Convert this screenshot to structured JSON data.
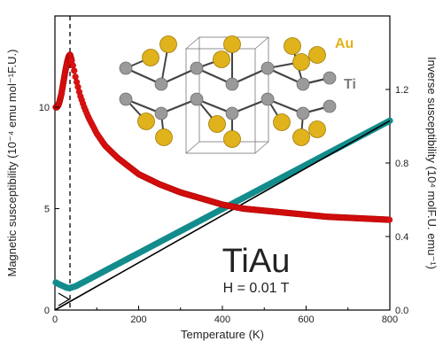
{
  "chart_data": {
    "type": "scatter",
    "xlabel": "Temperature (K)",
    "ylabel_left": "Magnetic susceptibility (10⁻⁴ emu mol⁻¹F.U.)",
    "ylabel_right": "Inverse susceptibility (10⁴ molF.U. emu⁻¹)",
    "xlim": [
      0,
      800
    ],
    "ylim_left": [
      0,
      14.5
    ],
    "ylim_right": [
      0,
      1.6
    ],
    "x_ticks": [
      "0",
      "200",
      "400",
      "600",
      "800"
    ],
    "y_left_ticks": [
      "0",
      "5",
      "10"
    ],
    "y_right_ticks": [
      "0.0",
      "0.4",
      "0.8",
      "1.2"
    ],
    "transition_line_x": 36,
    "annotation_title": "TiAu",
    "annotation_field": "H = 0.01 T",
    "inset_labels": {
      "au": "Au",
      "ti": "Ti"
    },
    "colors": {
      "susceptibility": "#dd1111",
      "inverse": "#138c8c",
      "fit": "#000000",
      "au": "#e0b21c",
      "ti": "#9a9a9a"
    },
    "series": [
      {
        "name": "",
        "axis": "left",
        "x": [
          2,
          5,
          8,
          10,
          15,
          20,
          25,
          30,
          33,
          36,
          40,
          45,
          50,
          60,
          70,
          80,
          100,
          120,
          150,
          200,
          250,
          300,
          350,
          400,
          450,
          500,
          550,
          600,
          650,
          700,
          750,
          800
        ],
        "y": [
          10.0,
          10.0,
          10.1,
          10.2,
          10.6,
          11.2,
          11.8,
          12.3,
          12.5,
          12.6,
          12.3,
          11.9,
          11.4,
          10.6,
          10.0,
          9.5,
          8.7,
          8.1,
          7.5,
          6.7,
          6.2,
          5.8,
          5.5,
          5.2,
          5.0,
          4.9,
          4.8,
          4.7,
          4.6,
          4.55,
          4.5,
          4.45
        ]
      },
      {
        "name": "",
        "axis": "right",
        "x": [
          2,
          10,
          20,
          30,
          36,
          50,
          100,
          150,
          200,
          250,
          300,
          350,
          400,
          450,
          500,
          550,
          600,
          650,
          700,
          750,
          800
        ],
        "y": [
          0.15,
          0.14,
          0.13,
          0.12,
          0.12,
          0.13,
          0.19,
          0.25,
          0.31,
          0.37,
          0.43,
          0.49,
          0.55,
          0.61,
          0.67,
          0.73,
          0.79,
          0.85,
          0.91,
          0.97,
          1.03
        ]
      },
      {
        "name": "",
        "axis": "right",
        "type": "line",
        "x": [
          0,
          800
        ],
        "y": [
          0.0,
          1.03
        ]
      }
    ]
  }
}
